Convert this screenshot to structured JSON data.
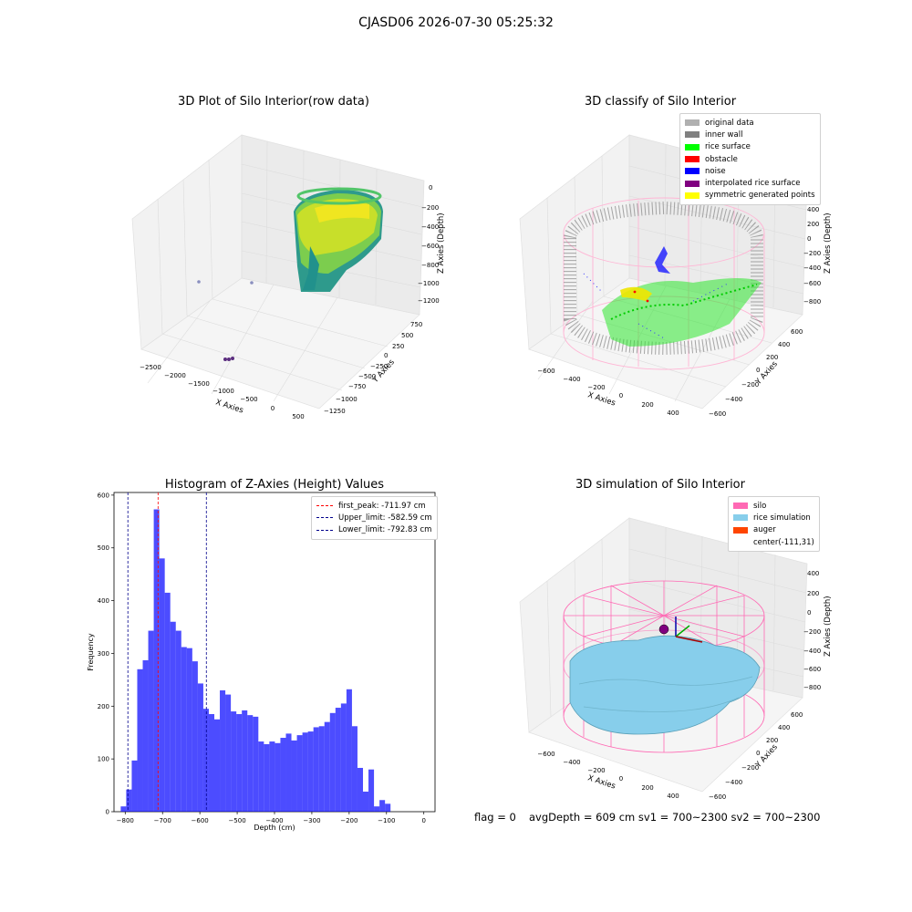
{
  "figure": {
    "suptitle": "CJASD06 2026-07-30 05:25:32"
  },
  "panel_tl": {
    "title": "3D Plot of Silo Interior(row data)",
    "xlabel": "X Axies",
    "ylabel": "Y Axies",
    "zlabel": "Z Axies (Depth)",
    "xticks": [
      "−2500",
      "−2000",
      "−1500",
      "−1000",
      "−500",
      "0",
      "500"
    ],
    "yticks": [
      "750",
      "500",
      "250",
      "0",
      "−250",
      "−500",
      "−750",
      "−1000",
      "−1250"
    ],
    "zticks": [
      "0",
      "−200",
      "−400",
      "−600",
      "−800",
      "−1000",
      "−1200"
    ]
  },
  "panel_tr": {
    "title": "3D classify of Silo Interior",
    "xlabel": "X Axies",
    "ylabel": "Y Axies",
    "zlabel": "Z Axies (Depth)",
    "xticks": [
      "−600",
      "−400",
      "−200",
      "0",
      "200",
      "400"
    ],
    "yticks": [
      "600",
      "400",
      "200",
      "0",
      "−200",
      "−400",
      "−600"
    ],
    "zticks": [
      "400",
      "200",
      "0",
      "−200",
      "−400",
      "−600",
      "−800"
    ],
    "legend": [
      {
        "label": "original data",
        "color": "#b0b0b0"
      },
      {
        "label": "inner wall",
        "color": "#808080"
      },
      {
        "label": "rice surface",
        "color": "#00ff00"
      },
      {
        "label": "obstacle",
        "color": "#ff0000"
      },
      {
        "label": "noise",
        "color": "#0000ff"
      },
      {
        "label": "interpolated rice surface",
        "color": "#800080"
      },
      {
        "label": "symmetric generated points",
        "color": "#ffff00"
      }
    ]
  },
  "panel_br": {
    "title": "3D simulation of Silo Interior",
    "xlabel": "X Axies",
    "ylabel": "Y Axies",
    "zlabel": "Z Axies (Depth)",
    "xticks": [
      "−600",
      "−400",
      "−200",
      "0",
      "200",
      "400"
    ],
    "yticks": [
      "600",
      "400",
      "200",
      "0",
      "−200",
      "−400",
      "−600"
    ],
    "zticks": [
      "400",
      "200",
      "0",
      "−200",
      "−400",
      "−600",
      "−800"
    ],
    "legend": [
      {
        "label": "silo",
        "color": "#ff69b4"
      },
      {
        "label": "rice simulation",
        "color": "#87ceeb"
      },
      {
        "label": "auger",
        "color": "#ff4500"
      },
      {
        "label": "center(-111,31)",
        "color": ""
      }
    ]
  },
  "footer": {
    "flag": "flag = 0",
    "avg": "avgDepth = 609 cm  sv1 = 700~2300  sv2 = 700~2300"
  },
  "chart_data": [
    {
      "type": "bar",
      "title": "Histogram of Z-Axies (Height) Values",
      "xlabel": "Depth (cm)",
      "ylabel": "Frequency",
      "xlim": [
        -830,
        30
      ],
      "ylim": [
        0,
        605
      ],
      "xticks": [
        -800,
        -700,
        -600,
        -500,
        -400,
        -300,
        -200,
        -100,
        0
      ],
      "yticks": [
        0,
        100,
        200,
        300,
        400,
        500,
        600
      ],
      "bin_start": -812,
      "bin_width": 14.75,
      "values": [
        10,
        42,
        97,
        270,
        287,
        343,
        573,
        480,
        415,
        360,
        343,
        312,
        310,
        285,
        243,
        195,
        185,
        175,
        230,
        222,
        190,
        185,
        192,
        183,
        180,
        133,
        128,
        133,
        130,
        140,
        148,
        135,
        145,
        150,
        152,
        160,
        162,
        170,
        187,
        197,
        205,
        232,
        162,
        83,
        38,
        80,
        10,
        22,
        15
      ],
      "color": "#0000ff",
      "vlines": [
        {
          "label": "first_peak: -711.97 cm",
          "x": -711.97,
          "color": "#ff0000"
        },
        {
          "label": "Upper_limit: -582.59 cm",
          "x": -582.59,
          "color": "#00008b"
        },
        {
          "label": "Lower_limit: -792.83 cm",
          "x": -792.83,
          "color": "#00008b"
        }
      ],
      "legend_position": "upper right"
    }
  ]
}
